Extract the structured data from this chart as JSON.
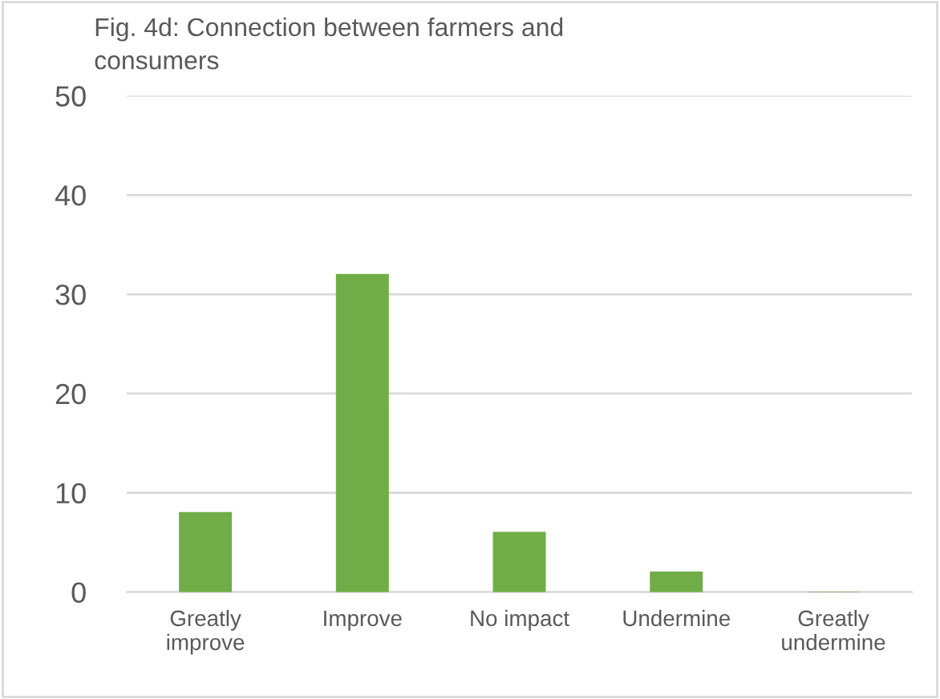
{
  "chart_data": {
    "type": "bar",
    "title": "Fig. 4d: Connection between farmers and\nconsumers",
    "categories": [
      "Greatly\nimprove",
      "Improve",
      "No impact",
      "Undermine",
      "Greatly\nundermine"
    ],
    "values": [
      8,
      32,
      6,
      2,
      0
    ],
    "color": "#70ad47",
    "ylim": [
      0,
      50
    ],
    "yticks": [
      0,
      10,
      20,
      30,
      40,
      50
    ],
    "grid": "y",
    "legend": false
  }
}
